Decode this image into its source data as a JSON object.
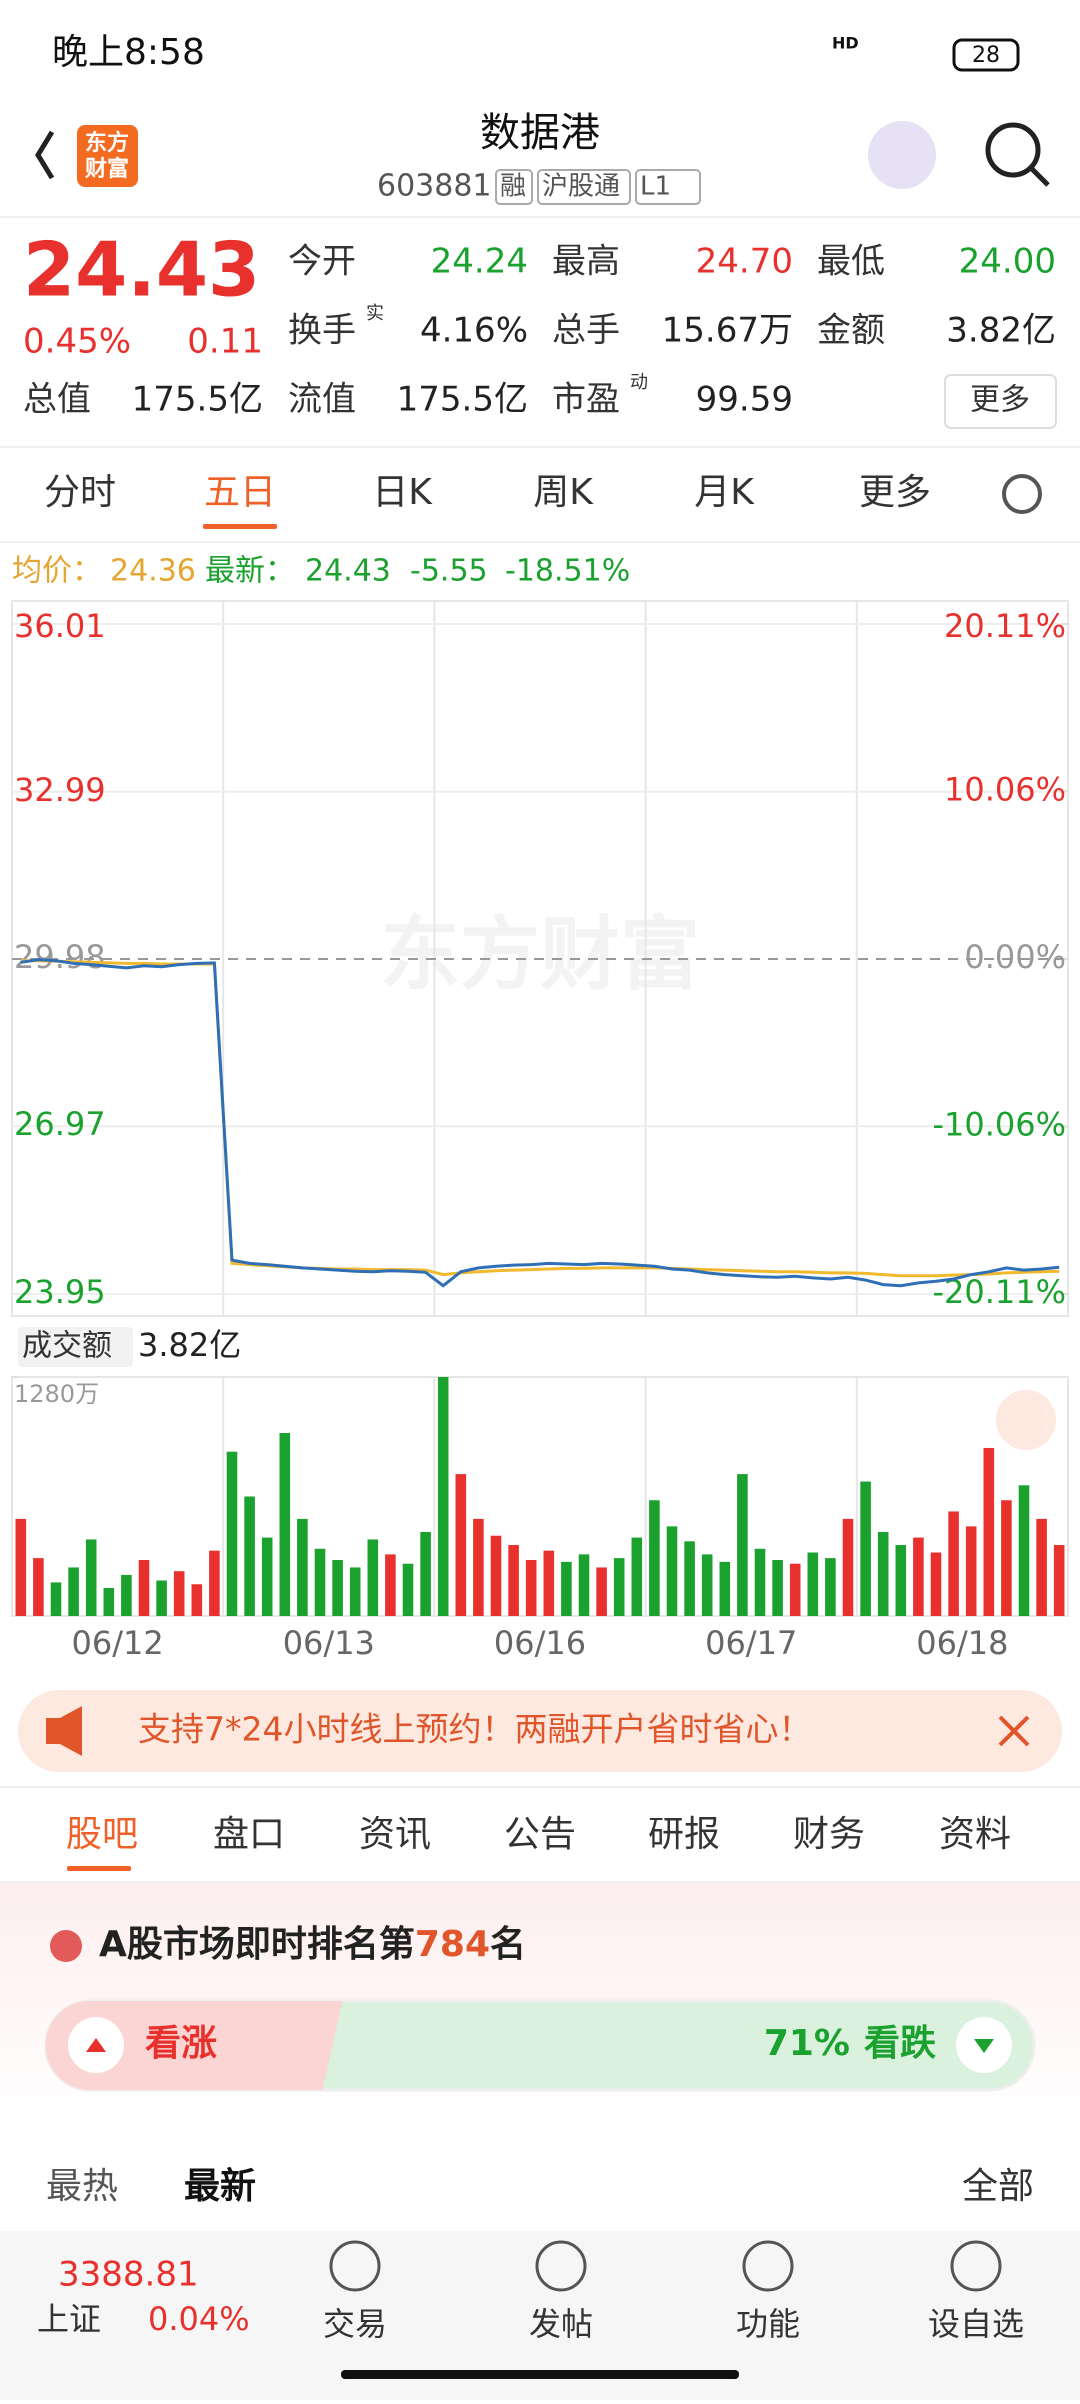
{
  "status": {
    "time": "晚上8:58",
    "network": "HD",
    "battery": "28"
  },
  "header": {
    "title": "数据港",
    "code": "603881",
    "tags": [
      "融",
      "沪股通",
      "L1"
    ],
    "logo": [
      "东方",
      "财富"
    ]
  },
  "quote": {
    "price": "24.43",
    "change_pct": "0.45%",
    "change": "0.11",
    "fields": [
      {
        "label": "今开",
        "value": "24.24"
      },
      {
        "label": "最高",
        "value": "24.70"
      },
      {
        "label": "最低",
        "value": "24.00"
      },
      {
        "label": "换手",
        "sup": "实",
        "value": "4.16%"
      },
      {
        "label": "总手",
        "value": "15.67万"
      },
      {
        "label": "金额",
        "value": "3.82亿"
      },
      {
        "label": "总值",
        "value": "175.5亿"
      },
      {
        "label": "流值",
        "value": "175.5亿"
      },
      {
        "label": "市盈",
        "sup": "动",
        "value": "99.59"
      }
    ],
    "more": "更多"
  },
  "tabs": {
    "items": [
      "分时",
      "五日",
      "日K",
      "周K",
      "月K",
      "更多"
    ],
    "active": 1
  },
  "indicator": {
    "avg_label": "均价：",
    "avg": "24.36",
    "latest_label": "最新：",
    "latest": "24.43",
    "change": "-5.55",
    "change_pct": "-18.51%"
  },
  "chart": {
    "type": "line",
    "watermark": "东方财富",
    "ylim": [
      23.95,
      36.01
    ],
    "yticks": [
      36.01,
      32.99,
      29.98,
      26.97,
      23.95
    ],
    "y2lim": [
      -20.11,
      20.11
    ],
    "y2ticks": [
      {
        "value": 20.11,
        "label": "20.11%"
      },
      {
        "value": 10.06,
        "label": "10.06%"
      },
      {
        "value": 0,
        "label": "0.00%"
      },
      {
        "value": -10.06,
        "label": "-10.06%"
      },
      {
        "value": -20.11,
        "label": "-20.11%"
      }
    ],
    "categories": [
      "06/12",
      "06/13",
      "06/16",
      "06/17",
      "06/18"
    ],
    "series": [
      {
        "name": "price",
        "color": "#2f6fb7",
        "values": [
          29.92,
          29.97,
          29.95,
          29.9,
          29.88,
          29.85,
          29.82,
          29.86,
          29.84,
          29.88,
          29.9,
          29.91,
          24.56,
          24.5,
          24.48,
          24.45,
          24.42,
          24.4,
          24.38,
          24.36,
          24.35,
          24.37,
          24.36,
          24.34,
          24.1,
          24.35,
          24.42,
          24.45,
          24.47,
          24.48,
          24.5,
          24.49,
          24.48,
          24.5,
          24.49,
          24.47,
          24.45,
          24.4,
          24.38,
          24.33,
          24.3,
          24.28,
          24.26,
          24.25,
          24.27,
          24.24,
          24.22,
          24.25,
          24.2,
          24.12,
          24.1,
          24.15,
          24.18,
          24.22,
          24.3,
          24.35,
          24.42,
          24.38,
          24.4,
          24.43
        ]
      },
      {
        "name": "avg",
        "color": "#f2b92f",
        "values": [
          29.95,
          29.95,
          29.94,
          29.93,
          29.92,
          29.91,
          29.9,
          29.9,
          29.89,
          29.89,
          29.89,
          29.89,
          24.5,
          24.48,
          24.46,
          24.44,
          24.42,
          24.41,
          24.4,
          24.4,
          24.39,
          24.39,
          24.39,
          24.38,
          24.3,
          24.33,
          24.35,
          24.37,
          24.38,
          24.39,
          24.4,
          24.41,
          24.41,
          24.42,
          24.42,
          24.42,
          24.42,
          24.41,
          24.4,
          24.39,
          24.38,
          24.37,
          24.36,
          24.35,
          24.35,
          24.34,
          24.33,
          24.33,
          24.32,
          24.3,
          24.28,
          24.28,
          24.28,
          24.29,
          24.3,
          24.31,
          24.33,
          24.34,
          24.35,
          24.36
        ]
      }
    ]
  },
  "volume": {
    "label": "成交额",
    "total": "3.82亿",
    "ylim": [
      0,
      1280
    ],
    "yticks": [
      {
        "value": 1280,
        "label": "1280万"
      }
    ],
    "values": [
      520,
      310,
      180,
      260,
      410,
      150,
      220,
      300,
      190,
      240,
      170,
      350,
      880,
      640,
      420,
      980,
      520,
      360,
      300,
      260,
      410,
      330,
      280,
      450,
      1280,
      760,
      520,
      430,
      380,
      300,
      350,
      290,
      330,
      260,
      310,
      420,
      620,
      480,
      400,
      330,
      290,
      760,
      360,
      300,
      280,
      340,
      310,
      520,
      720,
      450,
      380,
      420,
      340,
      560,
      480,
      900,
      620,
      700,
      520,
      380
    ]
  },
  "banner": {
    "text": "支持7*24小时线上预约！两融开户省时省心！"
  },
  "tabs2": {
    "items": [
      "股吧",
      "盘口",
      "资讯",
      "公告",
      "研报",
      "财务",
      "资料"
    ],
    "active": 0
  },
  "ranking": {
    "prefix": "A股市场即时排名第",
    "rank": "784",
    "suffix": "名"
  },
  "sentiment": {
    "up_label": "看涨",
    "down_pct": "71%",
    "down_label": "看跌"
  },
  "sort": {
    "items": [
      "最热",
      "最新"
    ],
    "filter": "全部"
  },
  "bottom": {
    "index_value": "3388.81",
    "index_name": "上证",
    "index_change": "0.04%",
    "items": [
      "交易",
      "发帖",
      "功能",
      "设自选"
    ]
  }
}
